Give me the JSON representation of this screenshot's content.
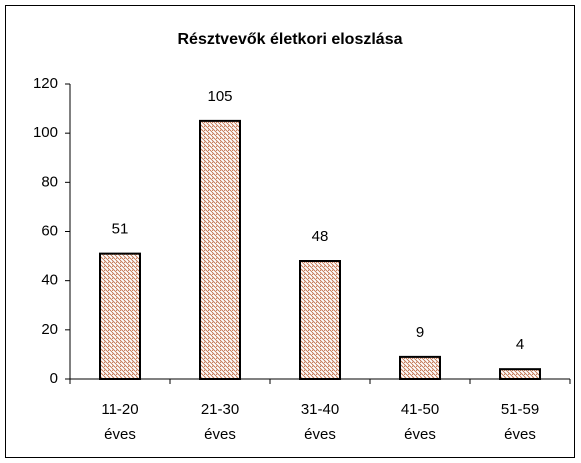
{
  "chart_data": {
    "type": "bar",
    "title": "Résztvevők életkori eloszlása",
    "categories": [
      "11-20 éves",
      "21-30 éves",
      "31-40 éves",
      "41-50 éves",
      "51-59 éves"
    ],
    "values": [
      51,
      105,
      48,
      9,
      4
    ],
    "color": "#c0704a",
    "ylim": [
      0,
      120
    ],
    "yticks": [
      0,
      20,
      40,
      60,
      80,
      100,
      120
    ],
    "grid": false
  }
}
